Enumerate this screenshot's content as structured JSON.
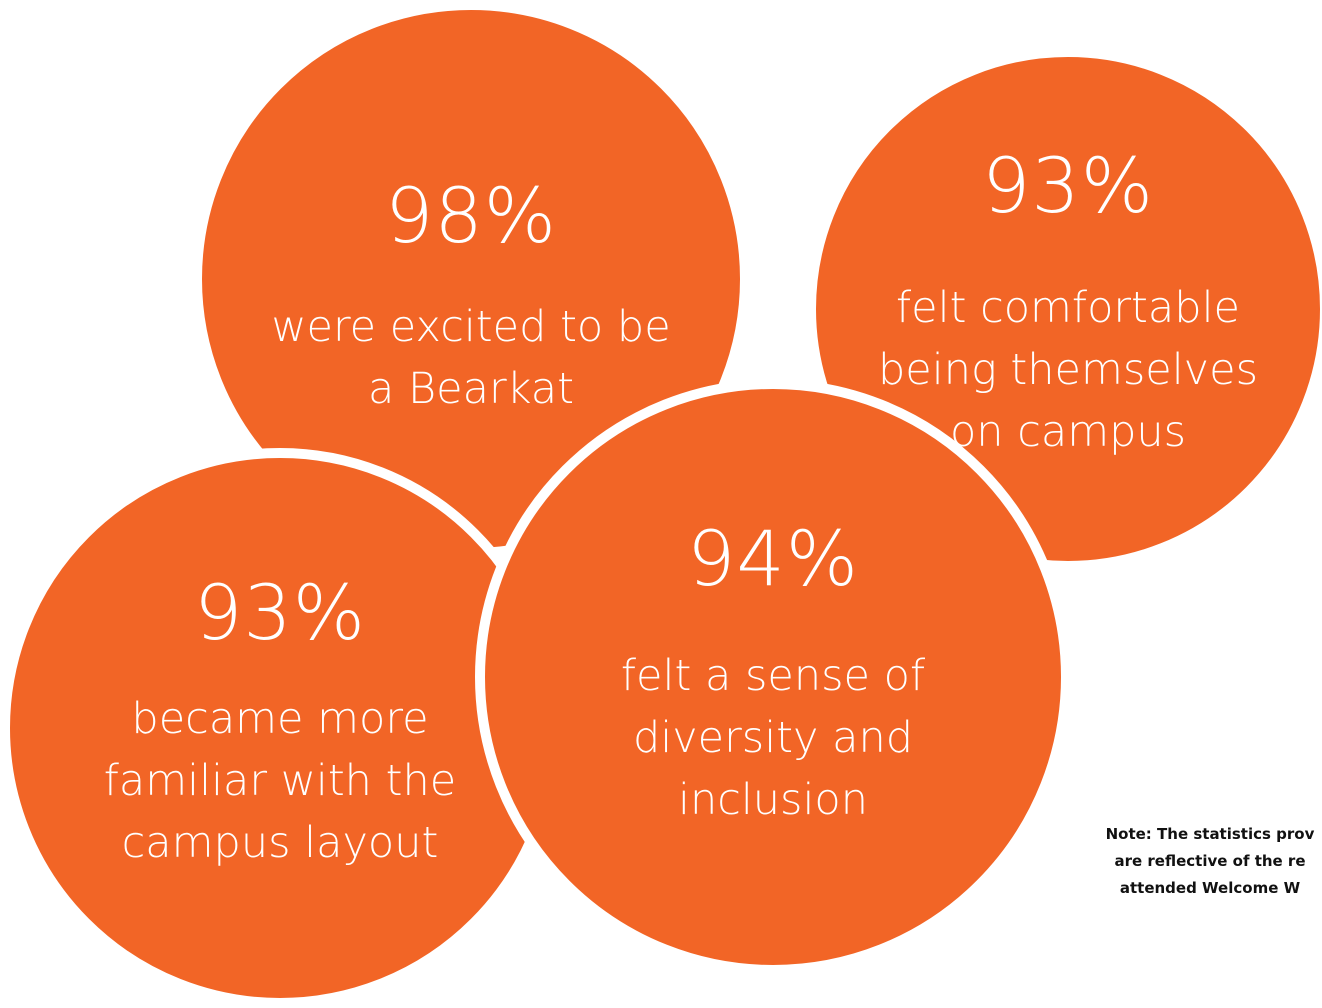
{
  "colors": {
    "circle_fill": "#F26526",
    "background": "#FFFFFF",
    "text_on_circle": "#FFFFFF",
    "note_text": "#111111"
  },
  "circles": [
    {
      "id": "excited",
      "percent": "98%",
      "lines": [
        "were excited to be",
        "a Bearkat"
      ]
    },
    {
      "id": "comfortable",
      "percent": "93%",
      "lines": [
        "felt comfortable",
        "being themselves",
        "on campus"
      ]
    },
    {
      "id": "familiar",
      "percent": "93%",
      "lines": [
        "became more",
        "familiar with the",
        "campus layout"
      ]
    },
    {
      "id": "diversity",
      "percent": "94%",
      "lines": [
        "felt a sense of",
        "diversity and",
        "inclusion"
      ]
    }
  ],
  "note": {
    "lines": [
      "Note: The statistics prov",
      "are reflective of the re",
      "attended Welcome W"
    ]
  }
}
